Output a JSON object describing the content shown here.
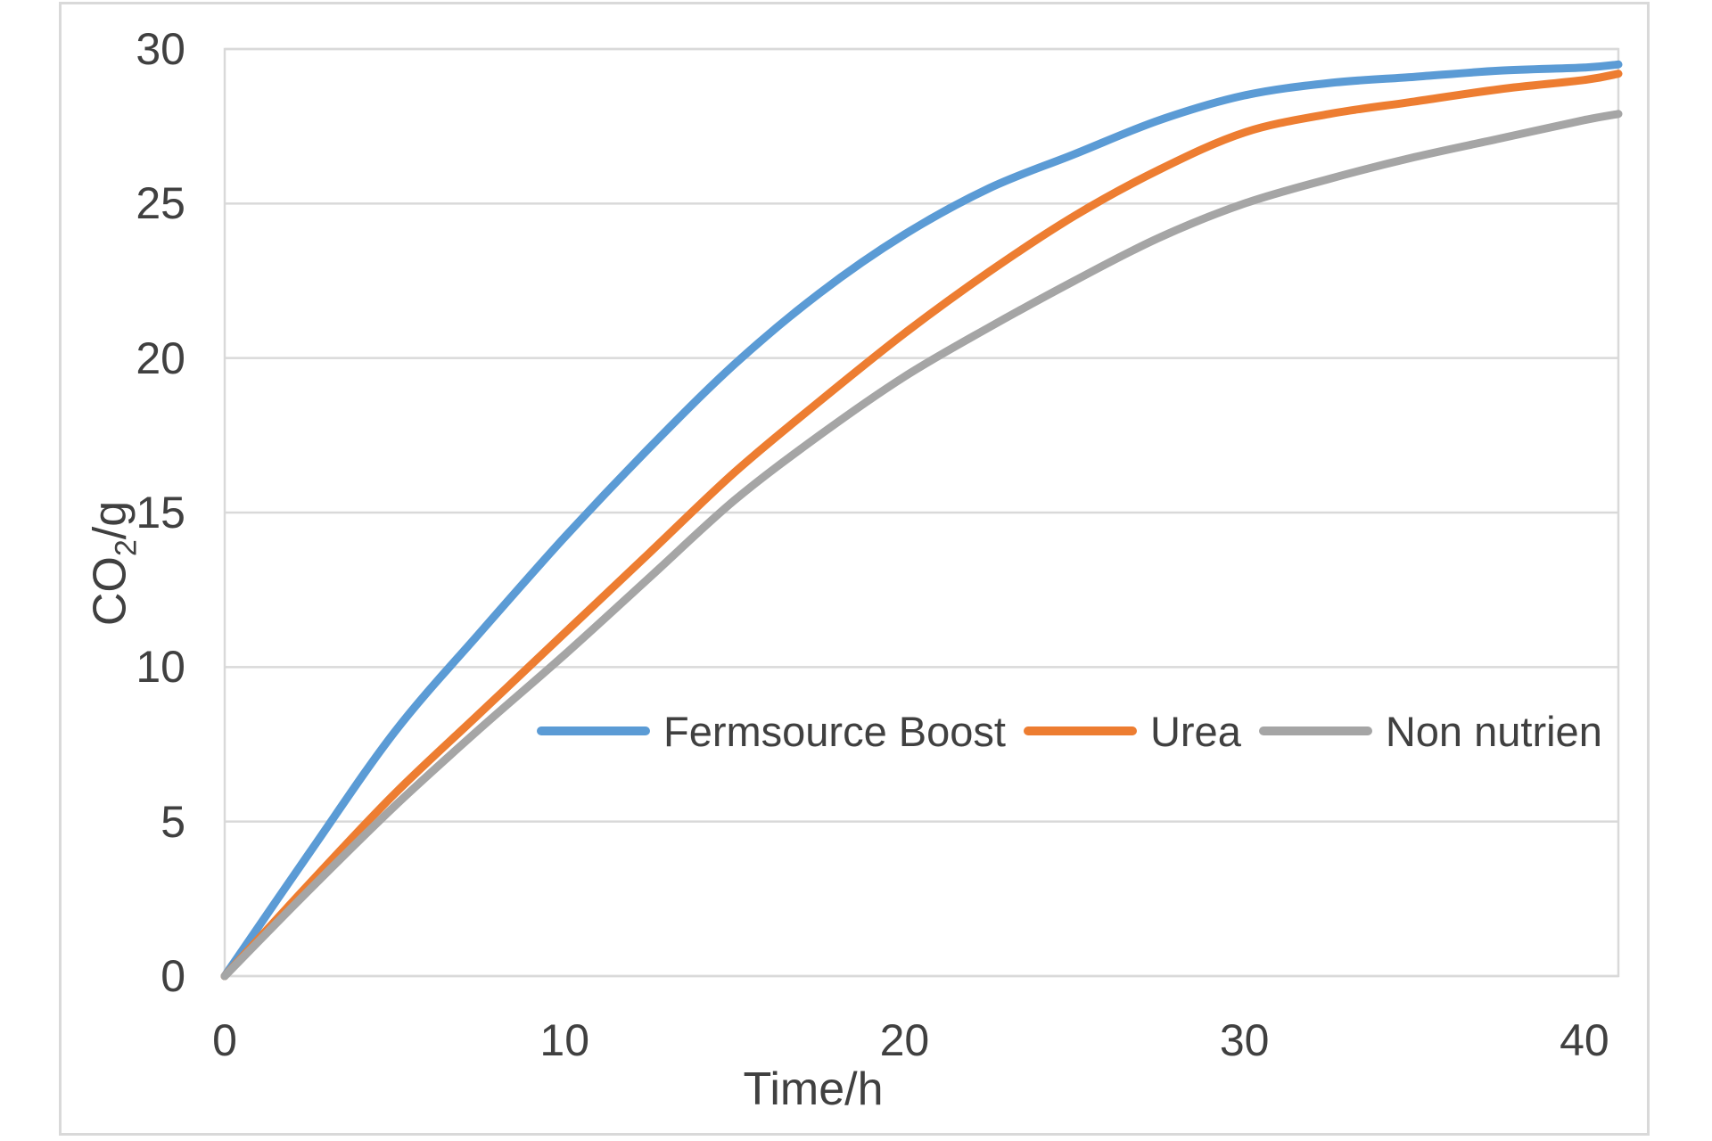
{
  "chart_data": {
    "type": "line",
    "title": "",
    "xlabel": "Time/h",
    "ylabel": {
      "text": "CO2/g",
      "prefix": "CO",
      "sub": "2",
      "suffix": "/g"
    },
    "xlim": [
      0,
      41
    ],
    "ylim": [
      0,
      30
    ],
    "xticks": [
      0,
      10,
      20,
      30,
      40
    ],
    "yticks": [
      0,
      5,
      10,
      15,
      20,
      25,
      30
    ],
    "grid": "horizontal",
    "legend_position": "inside-center",
    "x": [
      0,
      2.5,
      5,
      7.5,
      10,
      12.5,
      15,
      17.5,
      20,
      22.5,
      25,
      27.5,
      30,
      32.5,
      35,
      37.5,
      40,
      41
    ],
    "series": [
      {
        "name": "Fermsource Boost",
        "color": "#5B9BD5",
        "values": [
          0,
          4.0,
          7.9,
          11.1,
          14.2,
          17.1,
          19.8,
          22.1,
          24.0,
          25.5,
          26.6,
          27.7,
          28.5,
          28.9,
          29.1,
          29.3,
          29.4,
          29.5
        ]
      },
      {
        "name": "Urea",
        "color": "#ED7D31",
        "values": [
          0,
          3.0,
          5.9,
          8.5,
          11.1,
          13.7,
          16.3,
          18.6,
          20.8,
          22.8,
          24.6,
          26.1,
          27.3,
          27.9,
          28.3,
          28.7,
          29.0,
          29.2
        ]
      },
      {
        "name": "Non nutrien",
        "color": "#A5A5A5",
        "values": [
          0,
          2.8,
          5.5,
          8.0,
          10.4,
          12.9,
          15.4,
          17.5,
          19.4,
          21.0,
          22.5,
          23.9,
          25.0,
          25.8,
          26.5,
          27.1,
          27.7,
          27.9
        ]
      }
    ],
    "style": {
      "gridline_color": "#D9D9D9",
      "plot_border_color": "#D9D9D9",
      "frame_border_color": "#D9D9D9",
      "text_color": "#404040",
      "line_width": 9
    }
  }
}
